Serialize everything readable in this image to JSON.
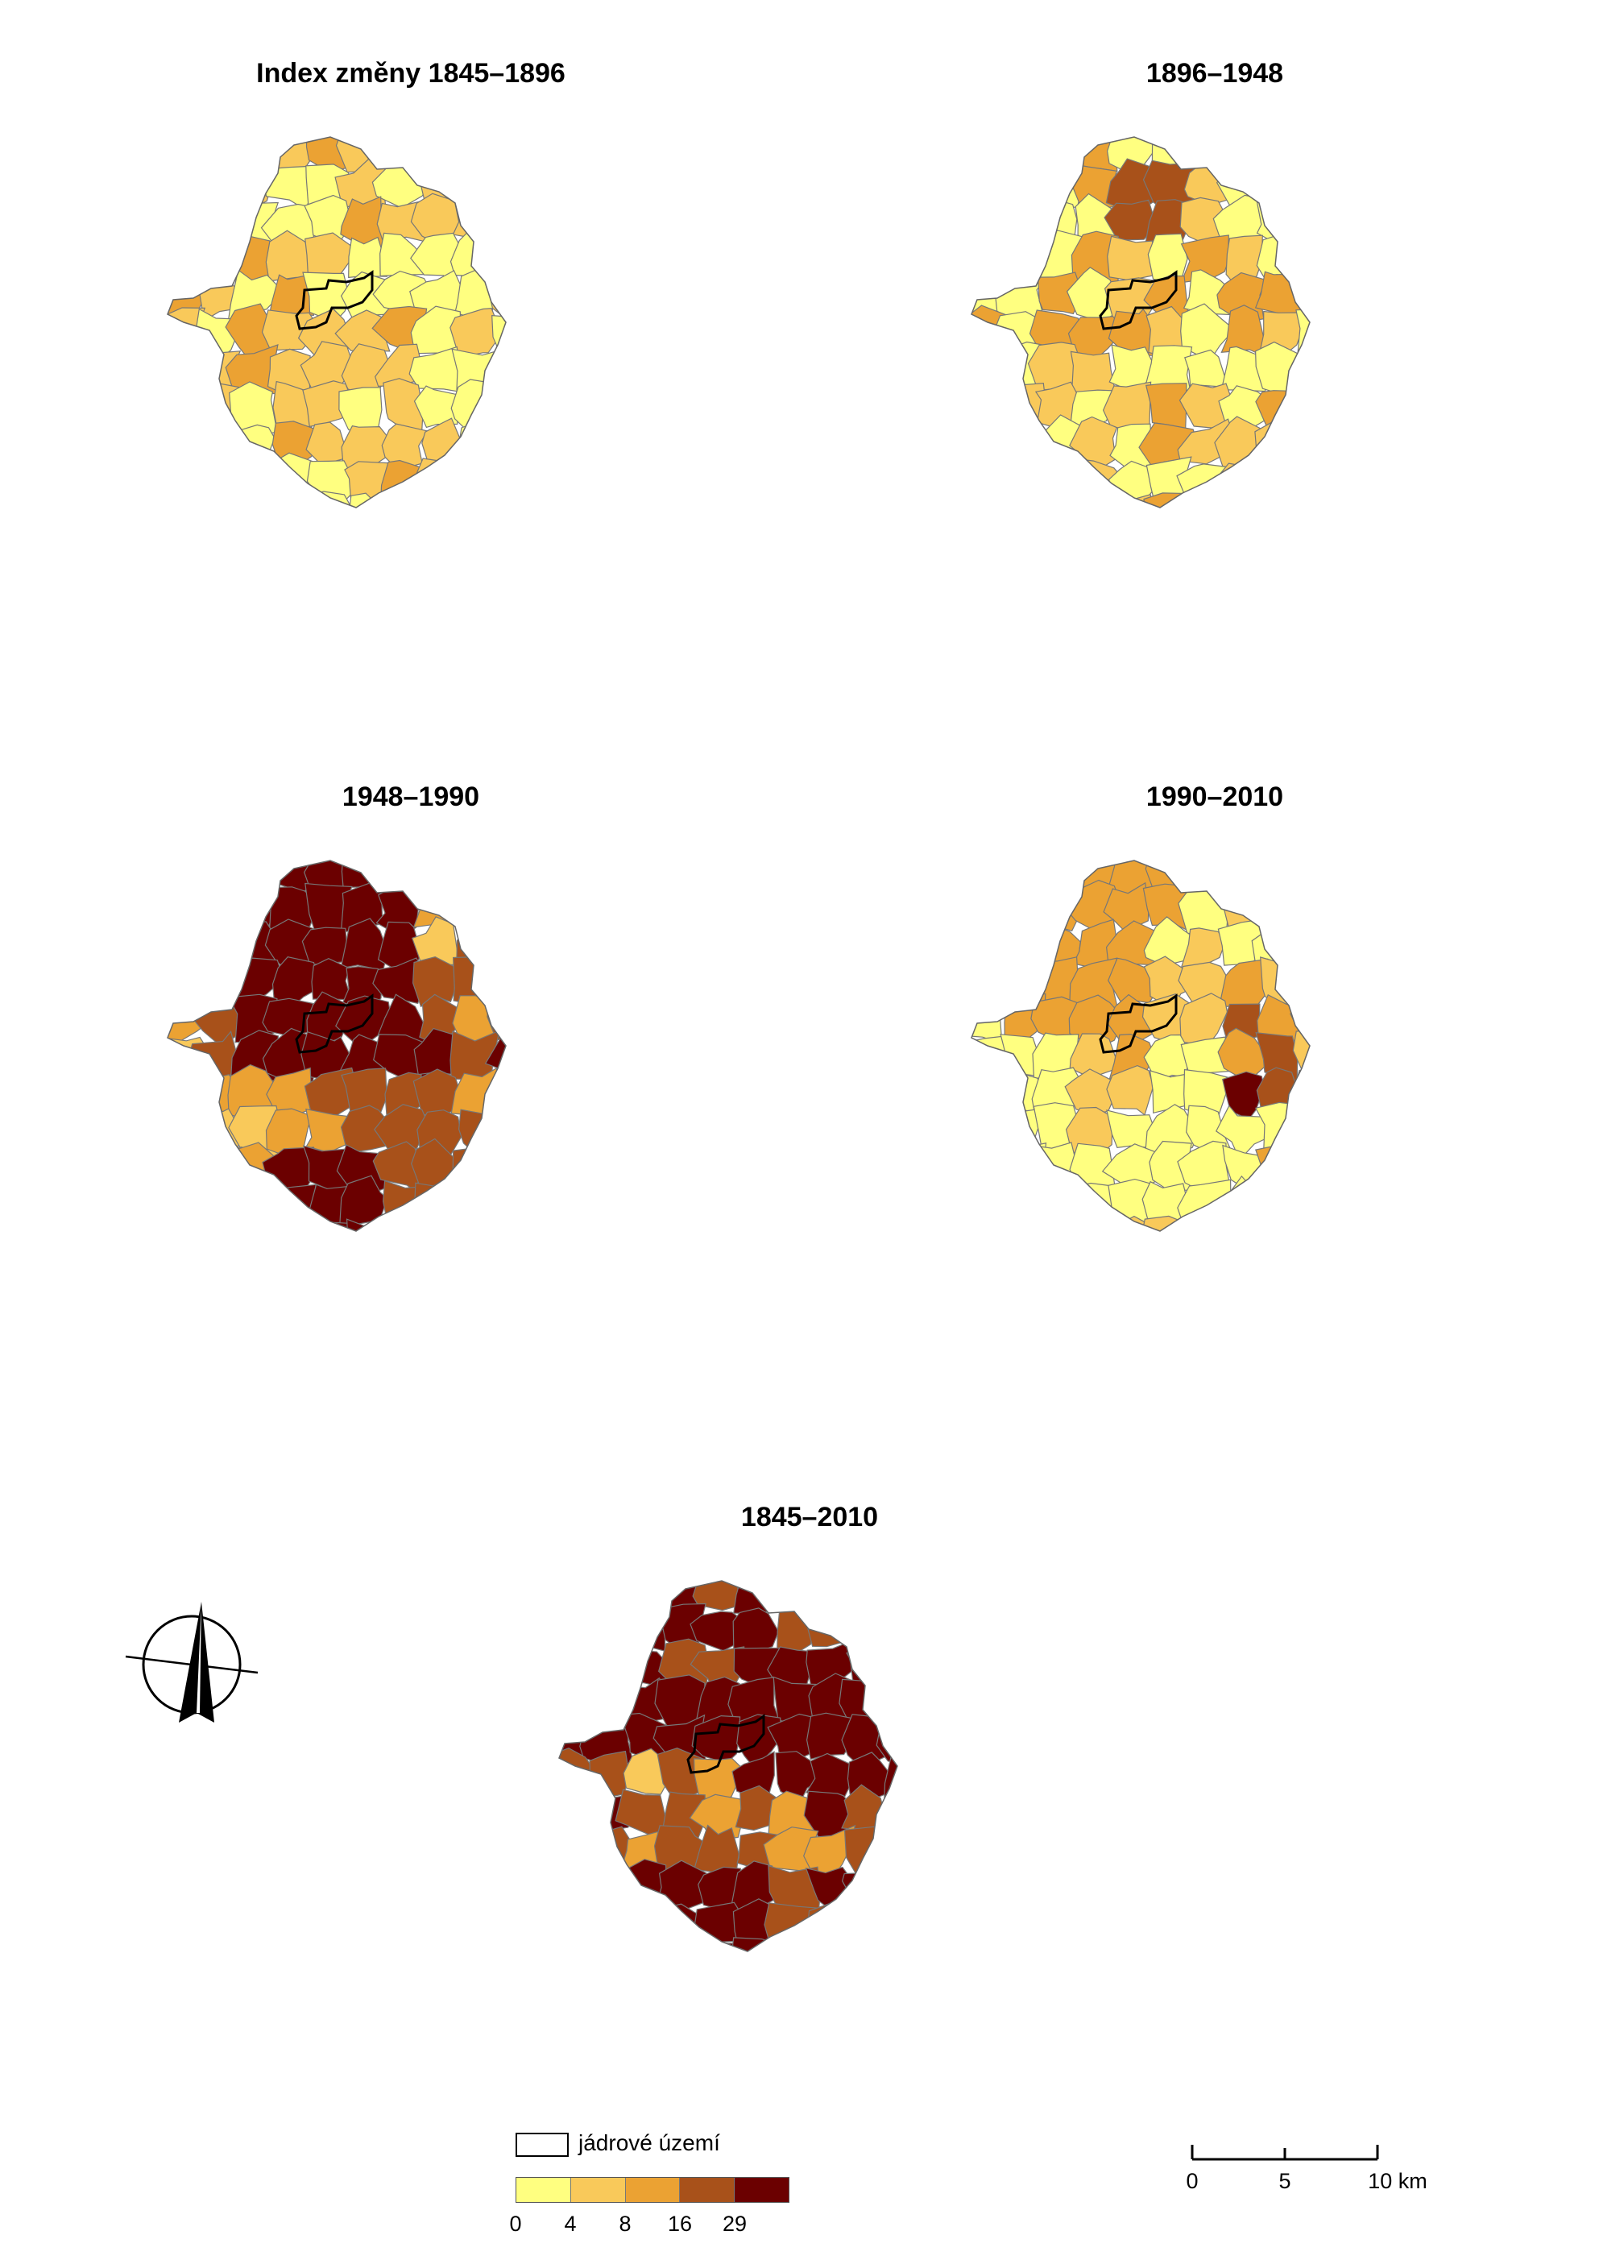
{
  "maps": [
    {
      "id": "m1",
      "title": "Index změny 1845–1896"
    },
    {
      "id": "m2",
      "title": "1896–1948"
    },
    {
      "id": "m3",
      "title": "1948–1990"
    },
    {
      "id": "m4",
      "title": "1990–2010"
    },
    {
      "id": "m5",
      "title": "1845–2010"
    }
  ],
  "legend": {
    "core_label": "jádrové území",
    "class_colors": [
      "#ffff80",
      "#f9c95a",
      "#eba233",
      "#a8511a",
      "#6b0000"
    ],
    "breaks": [
      "0",
      "4",
      "8",
      "16",
      "29"
    ]
  },
  "scale_bar": {
    "labels": [
      "0",
      "5",
      "10 km"
    ]
  },
  "north_arrow": {
    "icon": "north-arrow-icon"
  }
}
